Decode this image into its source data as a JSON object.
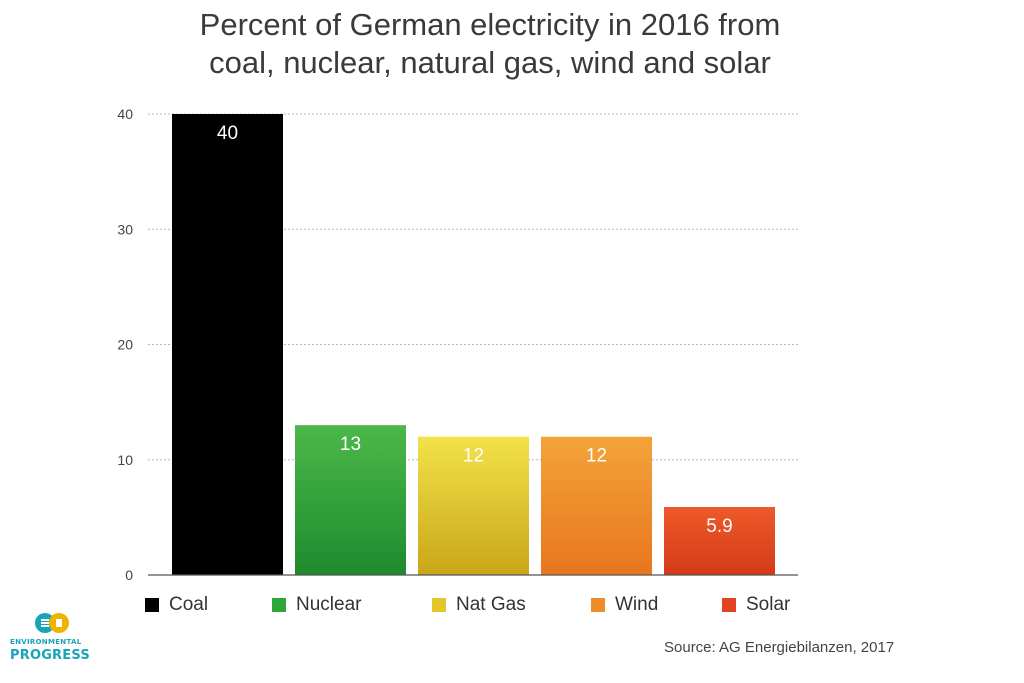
{
  "chart_data": {
    "type": "bar",
    "title": "Percent of German electricity in 2016 from coal, nuclear, natural gas, wind and solar",
    "title_lines": [
      "Percent of German electricity in 2016 from",
      "coal, nuclear, natural gas, wind and solar"
    ],
    "categories": [
      "Coal",
      "Nuclear",
      "Nat Gas",
      "Wind",
      "Solar"
    ],
    "values": [
      40,
      13,
      12,
      12,
      5.9
    ],
    "data_labels": [
      "40",
      "13",
      "12",
      "12",
      "5.9"
    ],
    "colors": [
      {
        "top": "#000000",
        "bottom": "#000000"
      },
      {
        "top": "#4cb84a",
        "bottom": "#1e8a2e"
      },
      {
        "top": "#f2e24a",
        "bottom": "#c9a619"
      },
      {
        "top": "#f3a33a",
        "bottom": "#e8761e"
      },
      {
        "top": "#ee5a2a",
        "bottom": "#d43a18"
      }
    ],
    "xlabel": "",
    "ylabel": "",
    "ylim": [
      0,
      40
    ],
    "yticks": [
      0,
      10,
      20,
      30,
      40
    ],
    "ytick_labels": [
      "0",
      "10",
      "20",
      "30",
      "40"
    ],
    "grid": true,
    "legend_position": "bottom"
  },
  "legend": [
    {
      "label": "Coal",
      "color": "#000000"
    },
    {
      "label": "Nuclear",
      "color": "#2fa63a"
    },
    {
      "label": "Nat Gas",
      "color": "#e2c62a"
    },
    {
      "label": "Wind",
      "color": "#ee8c2a"
    },
    {
      "label": "Solar",
      "color": "#e2441f"
    }
  ],
  "source": "Source: AG Energiebilanzen, 2017",
  "logo": {
    "line1": "ENVIRONMENTAL",
    "line2": "PROGRESS",
    "color": "#1aa3b8",
    "mark_color": "#f0b400"
  }
}
